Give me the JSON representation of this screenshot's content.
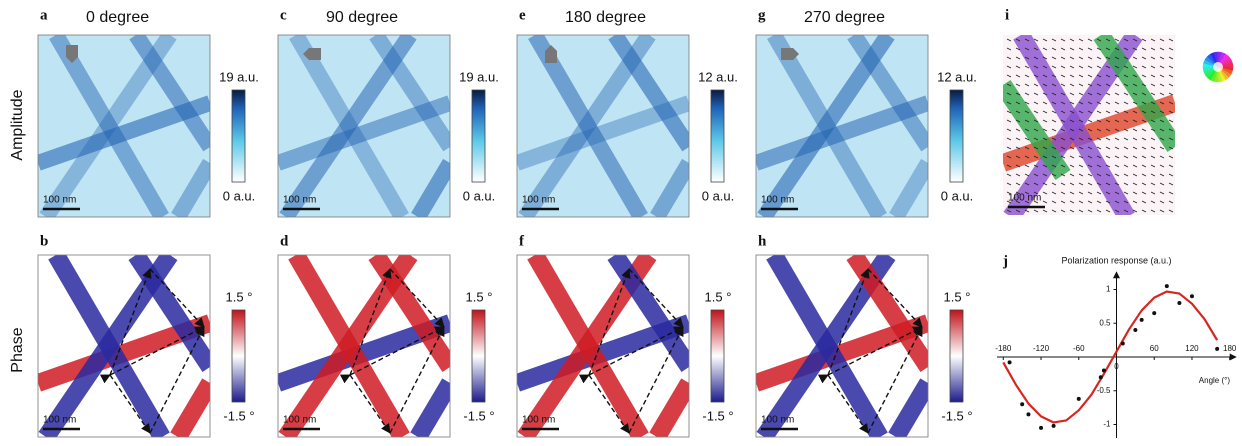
{
  "row_labels": [
    "Amplitude",
    "Phase"
  ],
  "amplitude_panels": [
    {
      "letter": "a",
      "title": "0 degree",
      "colorbar_max": "19 a.u.",
      "colorbar_min": "0 a.u.",
      "scale_bar": "100 nm"
    },
    {
      "letter": "c",
      "title": "90 degree",
      "colorbar_max": "19 a.u.",
      "colorbar_min": "0 a.u.",
      "scale_bar": "100 nm"
    },
    {
      "letter": "e",
      "title": "180 degree",
      "colorbar_max": "12 a.u.",
      "colorbar_min": "0 a.u.",
      "scale_bar": "100 nm"
    },
    {
      "letter": "g",
      "title": "270 degree",
      "colorbar_max": "12 a.u.",
      "colorbar_min": "0 a.u.",
      "scale_bar": "100 nm"
    }
  ],
  "phase_panels": [
    {
      "letter": "b",
      "colorbar_max": "1.5 °",
      "colorbar_min": "-1.5 °",
      "scale_bar": "100 nm"
    },
    {
      "letter": "d",
      "colorbar_max": "1.5 °",
      "colorbar_min": "-1.5 °",
      "scale_bar": "100 nm"
    },
    {
      "letter": "f",
      "colorbar_max": "1.5 °",
      "colorbar_min": "-1.5 °",
      "scale_bar": "100 nm"
    },
    {
      "letter": "h",
      "colorbar_max": "1.5 °",
      "colorbar_min": "-1.5 °",
      "scale_bar": "100 nm"
    }
  ],
  "vector_panel": {
    "letter": "i",
    "scale_bar": "100 nm"
  },
  "chart_data": {
    "type": "scatter",
    "panel_label": "j",
    "title": "Polarization response (a.u.)",
    "x_label": "Angle (°)",
    "x": [
      -170,
      -150,
      -140,
      -120,
      -100,
      -60,
      -25,
      -20,
      10,
      30,
      40,
      60,
      80,
      100,
      120,
      160
    ],
    "values": [
      -0.08,
      -0.7,
      -0.85,
      -1.05,
      -1.02,
      -0.62,
      -0.3,
      -0.2,
      0.2,
      0.4,
      0.55,
      0.65,
      1.05,
      0.8,
      0.9,
      0.12
    ],
    "color": "#111111",
    "fit": {
      "x": [
        -180,
        -160,
        -140,
        -120,
        -100,
        -80,
        -60,
        -40,
        -20,
        0,
        20,
        40,
        60,
        80,
        100,
        120,
        140,
        160
      ],
      "values": [
        -0.08,
        -0.41,
        -0.69,
        -0.88,
        -0.97,
        -0.94,
        -0.79,
        -0.56,
        -0.25,
        0.08,
        0.41,
        0.69,
        0.88,
        0.97,
        0.94,
        0.79,
        0.56,
        0.25
      ],
      "color": "#d7261e"
    },
    "xlim": [
      -190,
      190
    ],
    "ylim": [
      -1.2,
      1.2
    ],
    "xticks": [
      -180,
      -120,
      -60,
      0,
      60,
      120,
      180
    ],
    "yticks": [
      -1,
      -0.5,
      0.5,
      1
    ]
  }
}
